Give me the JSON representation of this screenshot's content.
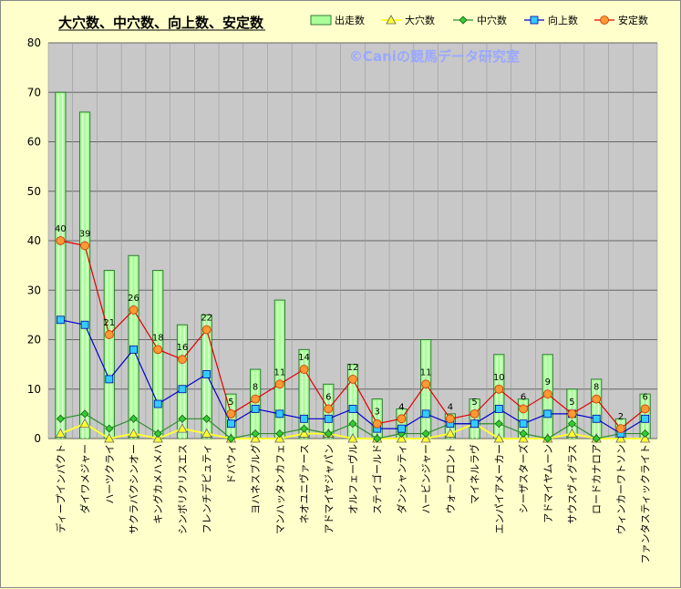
{
  "chart_data": {
    "type": "bar",
    "title": "大穴数、中穴数、向上数、安定数",
    "watermark": "©Caniの競馬データ研究室",
    "ylim": [
      0,
      80
    ],
    "yticks": [
      0,
      10,
      20,
      30,
      40,
      50,
      60,
      70,
      80
    ],
    "grid": true,
    "legend_placement": "top-right",
    "categories": [
      "ディープインパクト",
      "ダイワメジャー",
      "ハーツクライ",
      "サクラバクシンオー",
      "キングカメハメハ",
      "シンボリクリスエス",
      "フレンチデピュティ",
      "ドバウィ",
      "ヨハネスブルグ",
      "マンハッタンカフェ",
      "ネオユニヴァース",
      "アドマイヤジャパン",
      "オルフェーヴル",
      "ステイゴールド",
      "ダンシャンティ",
      "ハービンジャー",
      "ウォーフロント",
      "マイネルラヴ",
      "エンパイアメーカー",
      "シーザスターズ",
      "アドマイヤムーン",
      "サウスヴィグラス",
      "ロードカナロア",
      "ウィンカーワトソン",
      "ファンタスティックライト"
    ],
    "colors": {
      "bar_fill": "#aaff99",
      "bar_stroke": "#2e7d32",
      "oana": "#ffff33",
      "chuana": "#2e8b2e",
      "kojo": "#0000cc",
      "antei": "#e00000",
      "plot_bg": "#c8c8c8"
    },
    "series": [
      {
        "name": "出走数",
        "kind": "bar",
        "values": [
          70,
          66,
          34,
          37,
          34,
          23,
          25,
          9,
          14,
          28,
          18,
          11,
          15,
          8,
          6,
          20,
          5,
          8,
          17,
          8,
          17,
          10,
          12,
          4,
          9
        ]
      },
      {
        "name": "大穴数",
        "kind": "line",
        "marker": "triangle",
        "values": [
          1,
          3,
          0,
          1,
          0,
          2,
          1,
          0,
          0,
          0,
          1,
          1,
          0,
          0,
          0,
          0,
          1,
          3,
          0,
          0,
          0,
          1,
          0,
          0,
          0
        ]
      },
      {
        "name": "中穴数",
        "kind": "line",
        "marker": "diamond",
        "values": [
          4,
          5,
          2,
          4,
          1,
          4,
          4,
          0,
          1,
          1,
          2,
          1,
          3,
          0,
          1,
          1,
          3,
          3,
          3,
          1,
          0,
          3,
          0,
          1,
          1
        ]
      },
      {
        "name": "向上数",
        "kind": "line",
        "marker": "square",
        "values": [
          24,
          23,
          12,
          18,
          7,
          10,
          13,
          3,
          6,
          5,
          4,
          4,
          6,
          2,
          2,
          5,
          3,
          3,
          6,
          3,
          5,
          5,
          4,
          1,
          4
        ]
      },
      {
        "name": "安定数",
        "kind": "line",
        "marker": "circle",
        "values": [
          40,
          39,
          21,
          26,
          18,
          16,
          22,
          5,
          8,
          11,
          14,
          6,
          12,
          3,
          4,
          11,
          4,
          5,
          10,
          6,
          9,
          5,
          8,
          2,
          6
        ]
      }
    ],
    "data_labels": [
      "40",
      "39",
      "21",
      "26",
      "18",
      "16",
      "22",
      "5",
      "8",
      "11",
      "14",
      "6",
      "12",
      "3",
      "4",
      "11",
      "4",
      "5",
      "10",
      "6",
      "9",
      "5",
      "8",
      "2",
      "6"
    ]
  }
}
